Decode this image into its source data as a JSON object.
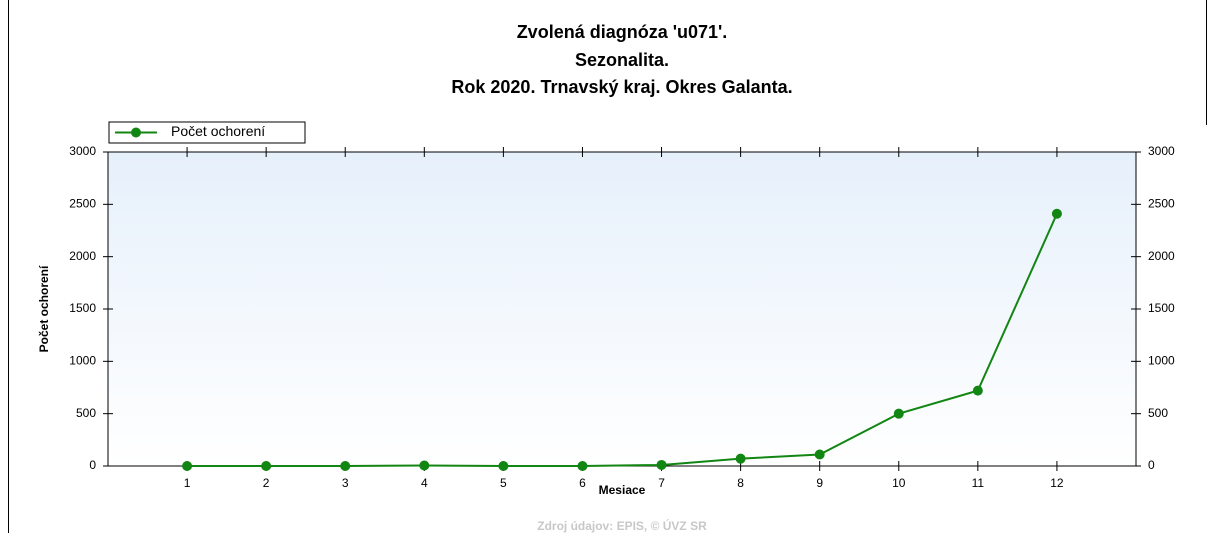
{
  "chart_data": {
    "type": "line",
    "title": "Zvolená diagnóza 'u071'.",
    "subtitle": [
      "Sezonalita.",
      "Rok 2020. Trnavský kraj. Okres Galanta."
    ],
    "x_label": "Mesiace",
    "y_label": "Počet ochorení",
    "source": "Zdroj údajov: EPIS, © ÚVZ SR",
    "x": [
      1,
      2,
      3,
      4,
      5,
      6,
      7,
      8,
      9,
      10,
      11,
      12
    ],
    "xlim": [
      0,
      13
    ],
    "xticks": [
      1,
      2,
      3,
      4,
      5,
      6,
      7,
      8,
      9,
      10,
      11,
      12
    ],
    "series": [
      {
        "name": "Počet ochorení",
        "color": "#128612",
        "values": [
          0,
          0,
          0,
          5,
          0,
          0,
          10,
          70,
          110,
          500,
          720,
          2410
        ]
      }
    ],
    "ylim": [
      0,
      3000
    ],
    "yticks": [
      0,
      500,
      1000,
      1500,
      2000,
      2500,
      3000
    ],
    "y2lim": [
      0,
      3000
    ],
    "y2ticks": [
      0,
      500,
      1000,
      1500,
      2000,
      2500,
      3000
    ],
    "legend": "top-left"
  }
}
